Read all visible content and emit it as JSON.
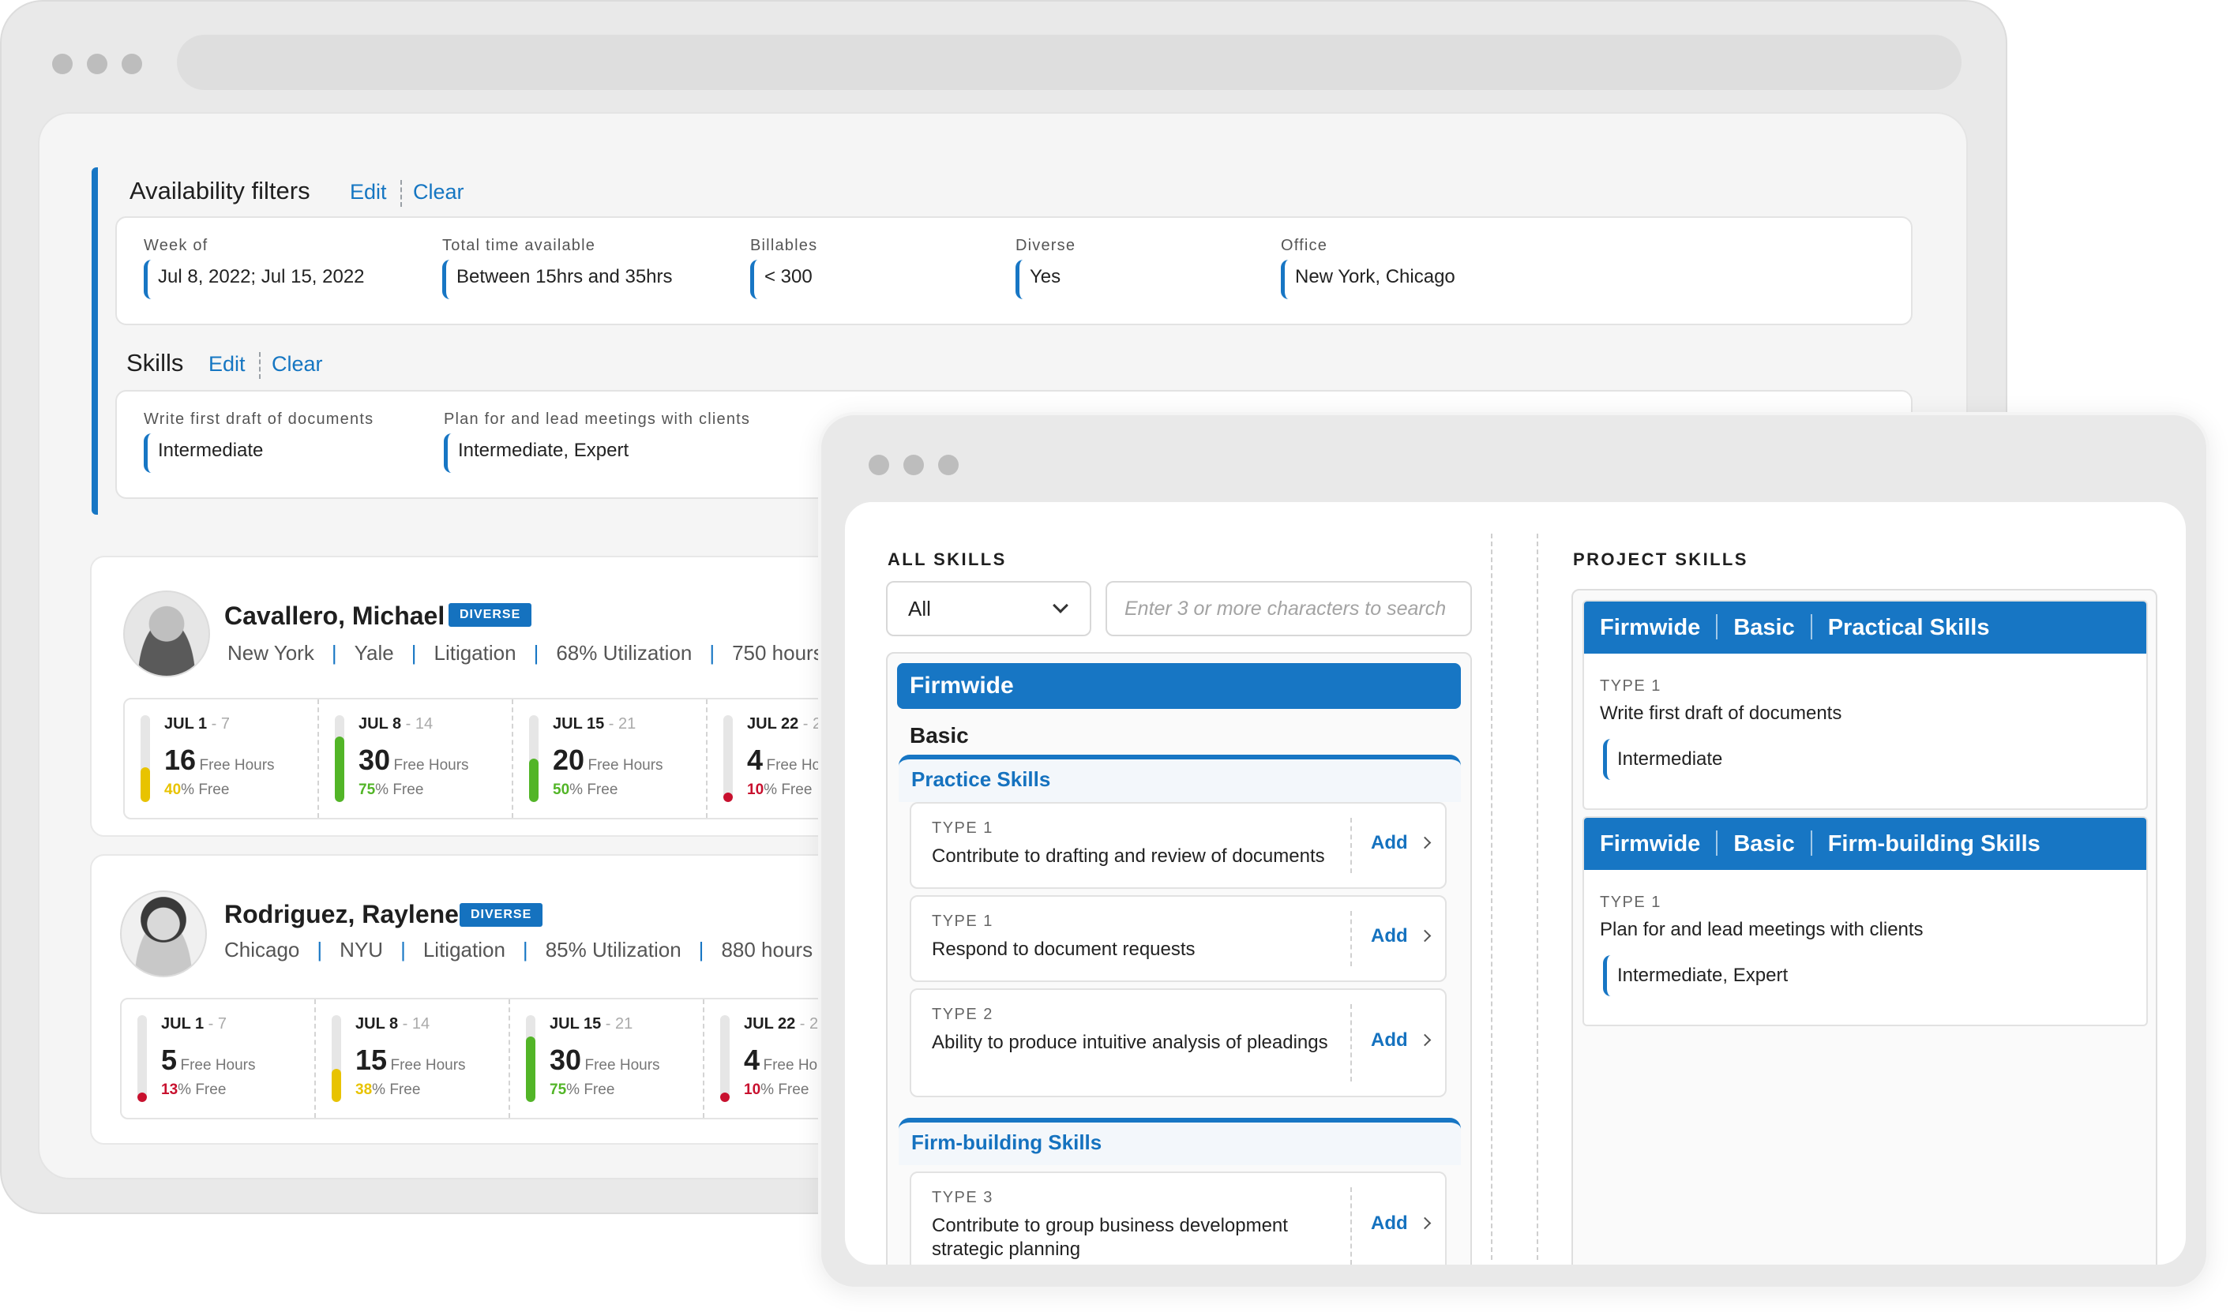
{
  "availability": {
    "title": "Availability filters",
    "edit": "Edit",
    "clear": "Clear",
    "filters": [
      {
        "label": "Week of",
        "value": "Jul 8, 2022; Jul 15, 2022"
      },
      {
        "label": "Total time available",
        "value": "Between 15hrs and 35hrs"
      },
      {
        "label": "Billables",
        "value": "< 300"
      },
      {
        "label": "Diverse",
        "value": "Yes"
      },
      {
        "label": "Office",
        "value": "New York, Chicago"
      }
    ]
  },
  "skills_filter": {
    "title": "Skills",
    "edit": "Edit",
    "clear": "Clear",
    "filters": [
      {
        "label": "Write first draft of documents",
        "value": "Intermediate"
      },
      {
        "label": "Plan for and lead meetings with clients",
        "value": "Intermediate, Expert"
      }
    ]
  },
  "people": [
    {
      "name": "Cavallero, Michael",
      "badge": "DIVERSE",
      "office": "New York",
      "school": "Yale",
      "practice": "Litigation",
      "utilization": "68% Utilization",
      "hours": "750 hours",
      "weeks": [
        {
          "start": "JUL 1",
          "end": " - 7",
          "free_hours": "16",
          "hours_label": "Free Hours",
          "pct": "40",
          "pct_label": "% Free",
          "level": 0.4,
          "color": "#e8c300"
        },
        {
          "start": "JUL 8",
          "end": " - 14",
          "free_hours": "30",
          "hours_label": "Free Hours",
          "pct": "75",
          "pct_label": "% Free",
          "level": 0.75,
          "color": "#52b527"
        },
        {
          "start": "JUL 15",
          "end": " - 21",
          "free_hours": "20",
          "hours_label": "Free Hours",
          "pct": "50",
          "pct_label": "% Free",
          "level": 0.5,
          "color": "#52b527"
        },
        {
          "start": "JUL 22",
          "end": " - 2",
          "free_hours": "4",
          "hours_label": "Free Hou",
          "pct": "10",
          "pct_label": "% Free",
          "level": 0.1,
          "color": "#c8102e"
        }
      ]
    },
    {
      "name": "Rodriguez, Raylene",
      "badge": "DIVERSE",
      "office": "Chicago",
      "school": "NYU",
      "practice": "Litigation",
      "utilization": "85% Utilization",
      "hours": "880 hours",
      "weeks": [
        {
          "start": "JUL 1",
          "end": " - 7",
          "free_hours": "5",
          "hours_label": "Free Hours",
          "pct": "13",
          "pct_label": "% Free",
          "level": 0.13,
          "color": "#c8102e"
        },
        {
          "start": "JUL 8",
          "end": " - 14",
          "free_hours": "15",
          "hours_label": "Free Hours",
          "pct": "38",
          "pct_label": "% Free",
          "level": 0.38,
          "color": "#e8c300"
        },
        {
          "start": "JUL 15",
          "end": " - 21",
          "free_hours": "30",
          "hours_label": "Free Hours",
          "pct": "75",
          "pct_label": "% Free",
          "level": 0.75,
          "color": "#52b527"
        },
        {
          "start": "JUL 22",
          "end": " - 2",
          "free_hours": "4",
          "hours_label": "Free Hou",
          "pct": "10",
          "pct_label": "% Free",
          "level": 0.1,
          "color": "#c8102e"
        }
      ]
    }
  ],
  "all_skills": {
    "title": "ALL SKILLS",
    "select_value": "All",
    "search_placeholder": "Enter 3 or more characters to search",
    "category": "Firmwide",
    "level": "Basic",
    "groups": [
      {
        "name": "Practice Skills",
        "items": [
          {
            "type": "TYPE 1",
            "text": "Contribute to drafting and review of documents",
            "action": "Add"
          },
          {
            "type": "TYPE 1",
            "text": "Respond to document requests",
            "action": "Add"
          },
          {
            "type": "TYPE 2",
            "text": "Ability to produce intuitive analysis of pleadings",
            "action": "Add"
          }
        ]
      },
      {
        "name": "Firm-building Skills",
        "items": [
          {
            "type": "TYPE 3",
            "text": "Contribute to group business development strategic planning",
            "action": "Add"
          }
        ]
      }
    ]
  },
  "project_skills": {
    "title": "PROJECT SKILLS",
    "cards": [
      {
        "category": "Firmwide",
        "level": "Basic",
        "group": "Practical Skills",
        "type": "TYPE 1",
        "text": "Write first draft of documents",
        "proficiency": "Intermediate"
      },
      {
        "category": "Firmwide",
        "level": "Basic",
        "group": "Firm-building Skills",
        "type": "TYPE 1",
        "text": "Plan for and lead meetings with clients",
        "proficiency": "Intermediate, Expert"
      }
    ]
  },
  "colors": {
    "accent": "#1776c4",
    "green": "#52b527",
    "yellow": "#e8c300",
    "red": "#c8102e"
  }
}
